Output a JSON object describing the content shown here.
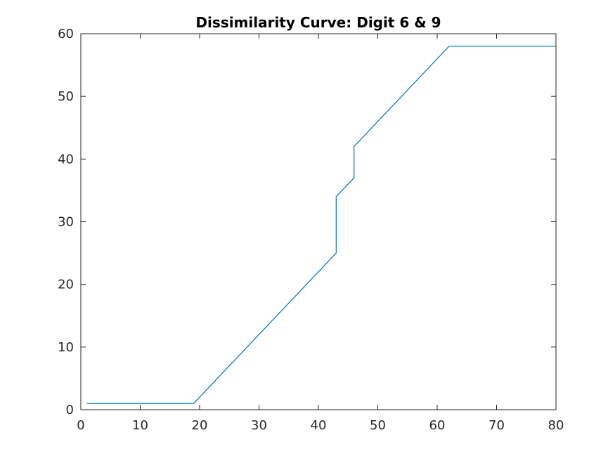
{
  "chart_data": {
    "type": "line",
    "title": "Dissimilarity Curve: Digit 6 & 9",
    "xlabel": "",
    "ylabel": "",
    "xlim": [
      0,
      80
    ],
    "ylim": [
      0,
      60
    ],
    "xticks": [
      0,
      10,
      20,
      30,
      40,
      50,
      60,
      70,
      80
    ],
    "yticks": [
      0,
      10,
      20,
      30,
      40,
      50,
      60
    ],
    "grid": false,
    "legend": "none",
    "series": [
      {
        "color": "#0072bd",
        "x": [
          1,
          19,
          43,
          43,
          46,
          46,
          62,
          80
        ],
        "y": [
          1,
          1,
          25,
          34,
          37,
          42,
          58,
          58
        ]
      }
    ]
  }
}
